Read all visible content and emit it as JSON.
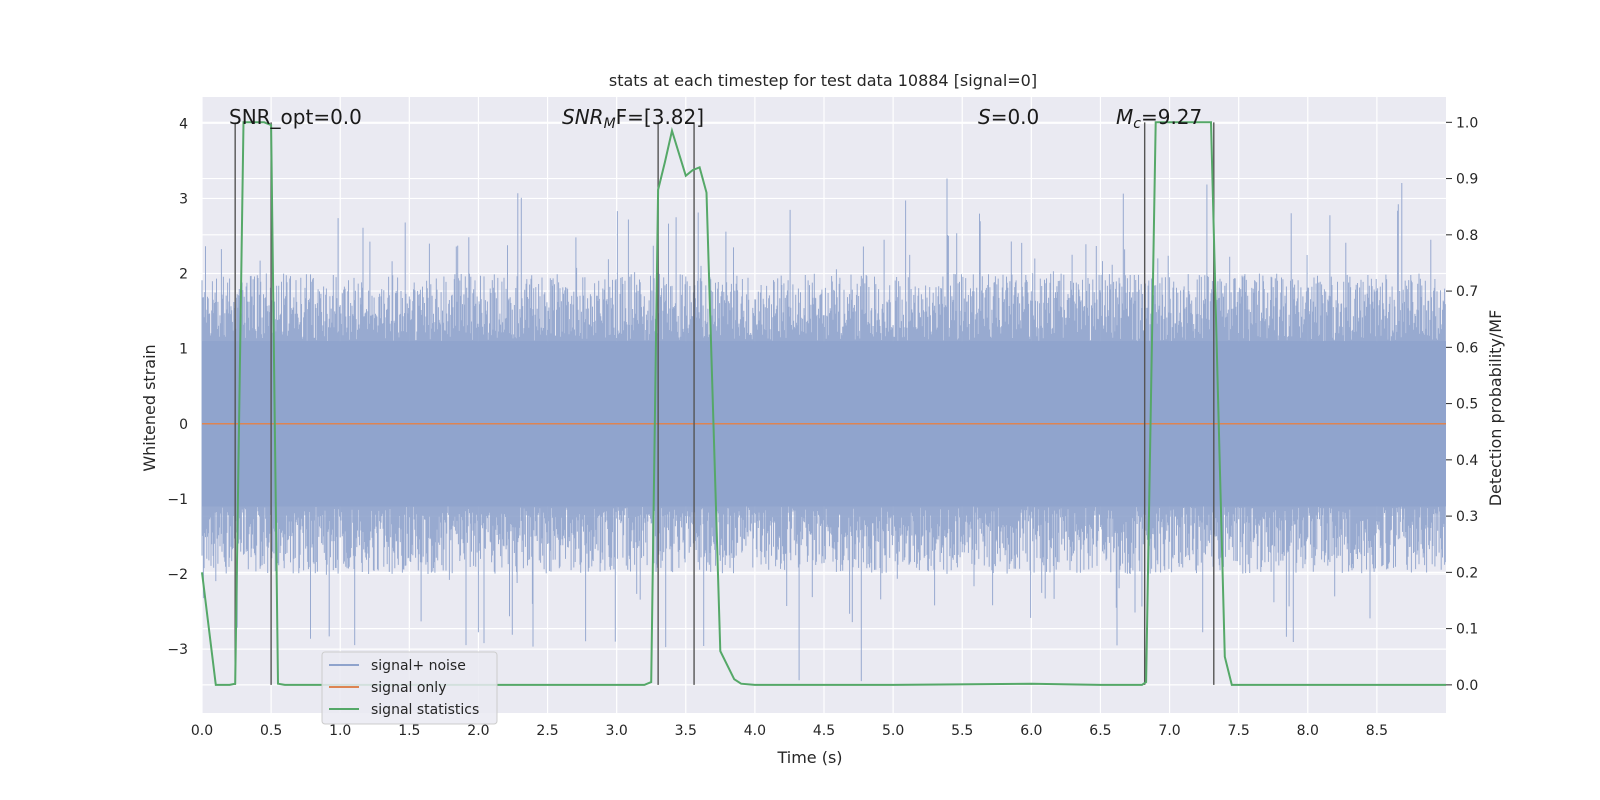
{
  "chart_data": {
    "type": "line",
    "title": "stats at each timestep for test data 10884 [signal=0]",
    "xlabel": "Time (s)",
    "ylabel_left": "Whitened strain",
    "ylabel_right": "Detection probability/MF",
    "xlim": [
      0.0,
      9.0
    ],
    "ylim_left": [
      -3.85,
      4.35
    ],
    "ylim_right": [
      -0.05,
      1.045
    ],
    "xticks": [
      "0.0",
      "0.5",
      "1.0",
      "1.5",
      "2.0",
      "2.5",
      "3.0",
      "3.5",
      "4.0",
      "4.5",
      "5.0",
      "5.5",
      "6.0",
      "6.5",
      "7.0",
      "7.5",
      "8.0",
      "8.5"
    ],
    "yticks_left": [
      "−3",
      "−2",
      "−1",
      "0",
      "1",
      "2",
      "3",
      "4"
    ],
    "yticks_right": [
      "0.0",
      "0.1",
      "0.2",
      "0.3",
      "0.4",
      "0.5",
      "0.6",
      "0.7",
      "0.8",
      "0.9",
      "1.0"
    ],
    "grid": true,
    "legend_position": "lower-left",
    "annotations": {
      "snr_opt": "SNR_opt=0.0",
      "snr_mf_main": "SNR",
      "snr_mf_sub": "M",
      "snr_mf_rest": "F=[3.82]",
      "s_italic": "S",
      "s_rest": "=0.0",
      "mc_italic": "M",
      "mc_sub": "c",
      "mc_rest": "=9.27"
    },
    "series": [
      {
        "name": "signal+ noise",
        "color": "#8fa3cc",
        "noise_amplitude_approx": 3.5
      },
      {
        "name": "signal only",
        "color": "#dd8452",
        "values_constant": 0.0
      },
      {
        "name": "signal statistics",
        "color": "#55a868",
        "x": [
          0.0,
          0.05,
          0.1,
          0.15,
          0.2,
          0.24,
          0.3,
          0.45,
          0.5,
          0.55,
          0.6,
          0.8,
          1.0,
          2.0,
          3.0,
          3.2,
          3.25,
          3.3,
          3.35,
          3.4,
          3.5,
          3.55,
          3.6,
          3.65,
          3.75,
          3.85,
          3.9,
          4.0,
          5.0,
          6.0,
          6.5,
          6.8,
          6.83,
          6.9,
          7.0,
          7.3,
          7.35,
          7.4,
          7.45,
          8.0,
          8.5,
          9.0
        ],
        "y": [
          0.2,
          0.1,
          0.0,
          0.0,
          0.0,
          0.002,
          1.0,
          1.0,
          0.995,
          0.002,
          0.0,
          0.0,
          0.0,
          0.0,
          0.0,
          0.0,
          0.005,
          0.88,
          0.93,
          0.985,
          0.905,
          0.915,
          0.92,
          0.875,
          0.06,
          0.01,
          0.002,
          0.0,
          0.0,
          0.002,
          0.0,
          0.0,
          0.005,
          1.0,
          1.0,
          1.0,
          0.52,
          0.05,
          0.0,
          0.0,
          0.0,
          0.0
        ]
      }
    ],
    "vertical_lines_x": [
      0.24,
      0.5,
      3.3,
      3.56,
      6.82,
      7.32
    ]
  }
}
